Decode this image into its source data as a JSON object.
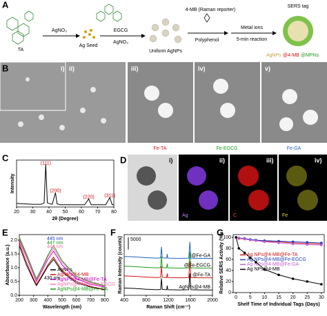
{
  "scheme": {
    "panel": "A",
    "ta": "TA",
    "agno3_a": "AgNO₃",
    "seed": "Ag Seed",
    "egcg": "EGCG",
    "agno3_b": "AgNO₃",
    "uniform": "Uniform AgNPs",
    "reporter": "4-MB (Raman reporter)",
    "polyphenol": "Polyphenol",
    "metal": "Metal ions",
    "reaction": "5-min reaction",
    "tag": "SERS tag",
    "tag_a": "AgNPs",
    "tag_b": "@4-MB",
    "tag_c": "@MPNs"
  },
  "panel_b": {
    "panel": "B",
    "sub": [
      "i)",
      "ii)",
      "iii)",
      "iv)",
      "v)"
    ],
    "captions": [
      "Fe-TA",
      "Fe-EGCG",
      "Fe-GA"
    ]
  },
  "panel_d": {
    "panel": "D",
    "sub": [
      "i)",
      "ii)",
      "iii)",
      "iv)"
    ],
    "elements": [
      "Ag",
      "C",
      "Fe"
    ]
  },
  "chart_data": [
    {
      "type": "line",
      "panel": "C",
      "xlabel": "2θ (Degree)",
      "ylabel": "Intensity",
      "x": [
        20,
        25,
        30,
        35,
        37,
        38,
        39,
        42,
        44,
        45,
        47,
        55,
        62,
        64.5,
        66,
        70,
        75,
        77.5,
        79,
        80
      ],
      "series": [
        {
          "color": "#000000",
          "values": [
            8,
            7,
            6,
            6,
            9,
            95,
            9,
            6,
            32,
            7,
            5,
            5,
            5,
            18,
            5,
            5,
            5,
            21,
            5,
            5
          ]
        }
      ],
      "xlim": [
        20,
        80
      ],
      "ylim": [
        0,
        105
      ],
      "xticks": [
        20,
        30,
        40,
        50,
        60,
        70,
        80
      ],
      "annotations": [
        {
          "text": "(111)",
          "x": 38,
          "y": 98
        },
        {
          "text": "(200)",
          "x": 44,
          "y": 36
        },
        {
          "text": "(220)",
          "x": 64.5,
          "y": 22
        },
        {
          "text": "(311)",
          "x": 77.5,
          "y": 25
        }
      ],
      "annotation_color": "#d01010"
    },
    {
      "type": "line",
      "panel": "E",
      "xlabel": "Wavelength (nm)",
      "ylabel": "Absorbance (a.u.)",
      "x": [
        200,
        250,
        300,
        320,
        350,
        400,
        440,
        500,
        600,
        700,
        800
      ],
      "series": [
        {
          "name": "AgNPs",
          "color": "#000000",
          "values": [
            1.8,
            1.1,
            0.55,
            0.35,
            0.6,
            1.05,
            1.3,
            0.85,
            0.45,
            0.3,
            0.2
          ]
        },
        {
          "name": "AgNPs@4-MB",
          "color": "#d01010",
          "values": [
            1.9,
            1.2,
            0.6,
            0.4,
            0.65,
            1.1,
            1.38,
            0.9,
            0.5,
            0.32,
            0.22
          ]
        },
        {
          "name": "AgNPs@4-MB@Fe-TA",
          "color": "#c000c0",
          "values": [
            2.0,
            1.4,
            0.75,
            0.5,
            0.8,
            1.3,
            1.6,
            1.1,
            0.6,
            0.4,
            0.3
          ]
        },
        {
          "name": "AgNPs@4-MB@Fe-EGCG",
          "color": "#ff6fb0",
          "values": [
            2.05,
            1.45,
            0.8,
            0.55,
            0.85,
            1.4,
            1.7,
            1.2,
            0.65,
            0.45,
            0.32
          ]
        },
        {
          "name": "AgNPs@4-MB@Fe-GA",
          "color": "#1a9a1a",
          "values": [
            2.1,
            1.5,
            0.85,
            0.6,
            0.9,
            1.45,
            1.8,
            1.25,
            0.7,
            0.48,
            0.35
          ]
        }
      ],
      "xlim": [
        200,
        800
      ],
      "ylim": [
        0,
        2.2
      ],
      "xticks": [
        200,
        300,
        400,
        500,
        600,
        700,
        800
      ],
      "yticks": [
        {
          "value": 0,
          "label": "0.0"
        },
        0.5,
        {
          "value": 1,
          "label": "1.0"
        },
        1.5,
        {
          "value": 2,
          "label": "2.0"
        }
      ],
      "legend": "lower center",
      "annotations": [
        {
          "text": "445 nm",
          "x": 450,
          "y": 2.05,
          "color": "#1f3fbf"
        },
        {
          "text": "447 nm",
          "x": 450,
          "y": 1.9,
          "color": "#1a9a1a"
        },
        {
          "text": "444 nm",
          "x": 450,
          "y": 1.76,
          "color": "#ff6fb0"
        },
        {
          "text": "430 nm",
          "x": 430,
          "y": 0.62,
          "color": "#000000"
        }
      ]
    },
    {
      "type": "line",
      "panel": "F",
      "xlabel": "Raman Shift (cm⁻¹)",
      "ylabel": "Raman Intensity (counts)",
      "x": [
        400,
        600,
        800,
        1000,
        1060,
        1075,
        1090,
        1170,
        1180,
        1190,
        1400,
        1570,
        1590,
        1610,
        1800,
        2000
      ],
      "series": [
        {
          "name": "@Fe-GA",
          "color": "#1f5fbf",
          "values": [
            16000,
            15800,
            15500,
            15300,
            15400,
            20000,
            15400,
            15300,
            17000,
            15300,
            15200,
            15300,
            22000,
            15300,
            15200,
            15200
          ]
        },
        {
          "name": "@Fe-EGCG",
          "color": "#1a9a1a",
          "values": [
            12000,
            11800,
            11500,
            11300,
            11400,
            16000,
            11400,
            11300,
            13000,
            11300,
            11200,
            11300,
            18000,
            11300,
            11200,
            11200
          ]
        },
        {
          "name": "@Fe-TA",
          "color": "#d01010",
          "values": [
            8000,
            7800,
            7500,
            7300,
            7400,
            12000,
            7400,
            7300,
            9000,
            7300,
            7200,
            7300,
            14000,
            7300,
            7200,
            7200
          ]
        },
        {
          "name": "AgNPs@4-MB",
          "color": "#000000",
          "values": [
            3000,
            2800,
            2500,
            2300,
            2400,
            7000,
            2400,
            2300,
            4000,
            2300,
            2200,
            2300,
            9000,
            2300,
            2200,
            2200
          ]
        }
      ],
      "xlim": [
        400,
        2000
      ],
      "ylim": [
        0,
        25000
      ],
      "xticks": [
        400,
        800,
        1200,
        1600,
        2000
      ],
      "legend": "curve",
      "scale_bar": 5000
    },
    {
      "type": "line",
      "panel": "G",
      "xlabel": "Shelf Time of Individual Tags (Days)",
      "ylabel": "Relative SERS Activity (%)",
      "x": [
        0,
        1,
        3,
        5,
        7,
        10,
        15,
        20,
        25,
        30
      ],
      "series": [
        {
          "name": "Ag NPs@4-MB@Fe-TA",
          "color": "#d01010",
          "values": [
            100,
            98,
            97,
            96,
            95,
            93,
            92,
            90,
            89,
            88
          ]
        },
        {
          "name": "Ag NPs@4-MB@Fe-EGCG",
          "color": "#1f3fbf",
          "values": [
            100,
            99,
            98,
            96,
            95,
            94,
            93,
            92,
            91,
            90
          ]
        },
        {
          "name": "Ag NPs@4-MB@Fe-GA",
          "color": "#c060d0",
          "values": [
            100,
            99,
            97,
            95,
            94,
            92,
            90,
            88,
            87,
            86
          ]
        },
        {
          "name": "Ag NPs@4-MB",
          "color": "#000000",
          "values": [
            100,
            80,
            72,
            63,
            55,
            42,
            32,
            25,
            20,
            15
          ]
        }
      ],
      "xlim": [
        -1,
        31
      ],
      "ylim": [
        0,
        105
      ],
      "xticks": [
        0,
        5,
        10,
        15,
        20,
        25,
        30
      ],
      "yticks": [
        0,
        20,
        40,
        60,
        80,
        100
      ],
      "legend": "center",
      "markers": true
    }
  ]
}
